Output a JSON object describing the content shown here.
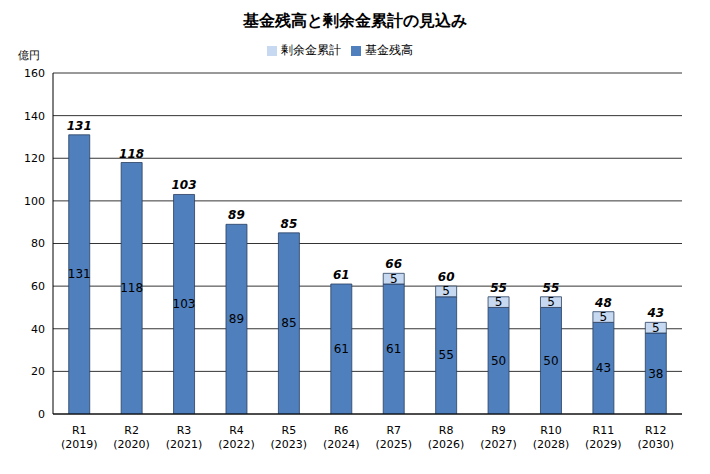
{
  "chart_data": {
    "type": "bar",
    "title": "基金残高と剰余金累計の見込み",
    "y_label": "億円",
    "categories": [
      "R1\n(2019)",
      "R2\n(2020)",
      "R3\n(2021)",
      "R4\n(2022)",
      "R5\n(2023)",
      "R6\n(2024)",
      "R7\n(2025)",
      "R8\n(2026)",
      "R9\n(2027)",
      "R10\n(2028)",
      "R11\n(2029)",
      "R12\n(2030)"
    ],
    "series": [
      {
        "name": "基金残高",
        "color": "#4f7fbd",
        "values": [
          131,
          118,
          103,
          89,
          85,
          61,
          61,
          55,
          50,
          50,
          43,
          38
        ]
      },
      {
        "name": "剰余金累計",
        "color": "#c6d9f1",
        "values": [
          null,
          null,
          null,
          null,
          null,
          null,
          5,
          5,
          5,
          5,
          5,
          5
        ]
      }
    ],
    "totals": [
      131,
      118,
      103,
      89,
      85,
      61,
      66,
      60,
      55,
      55,
      48,
      43
    ],
    "ylim": [
      0,
      160
    ],
    "yticks": [
      0,
      20,
      40,
      60,
      80,
      100,
      120,
      140,
      160
    ],
    "grid": true,
    "stacked": true,
    "data_labels": true,
    "legend": "top"
  }
}
